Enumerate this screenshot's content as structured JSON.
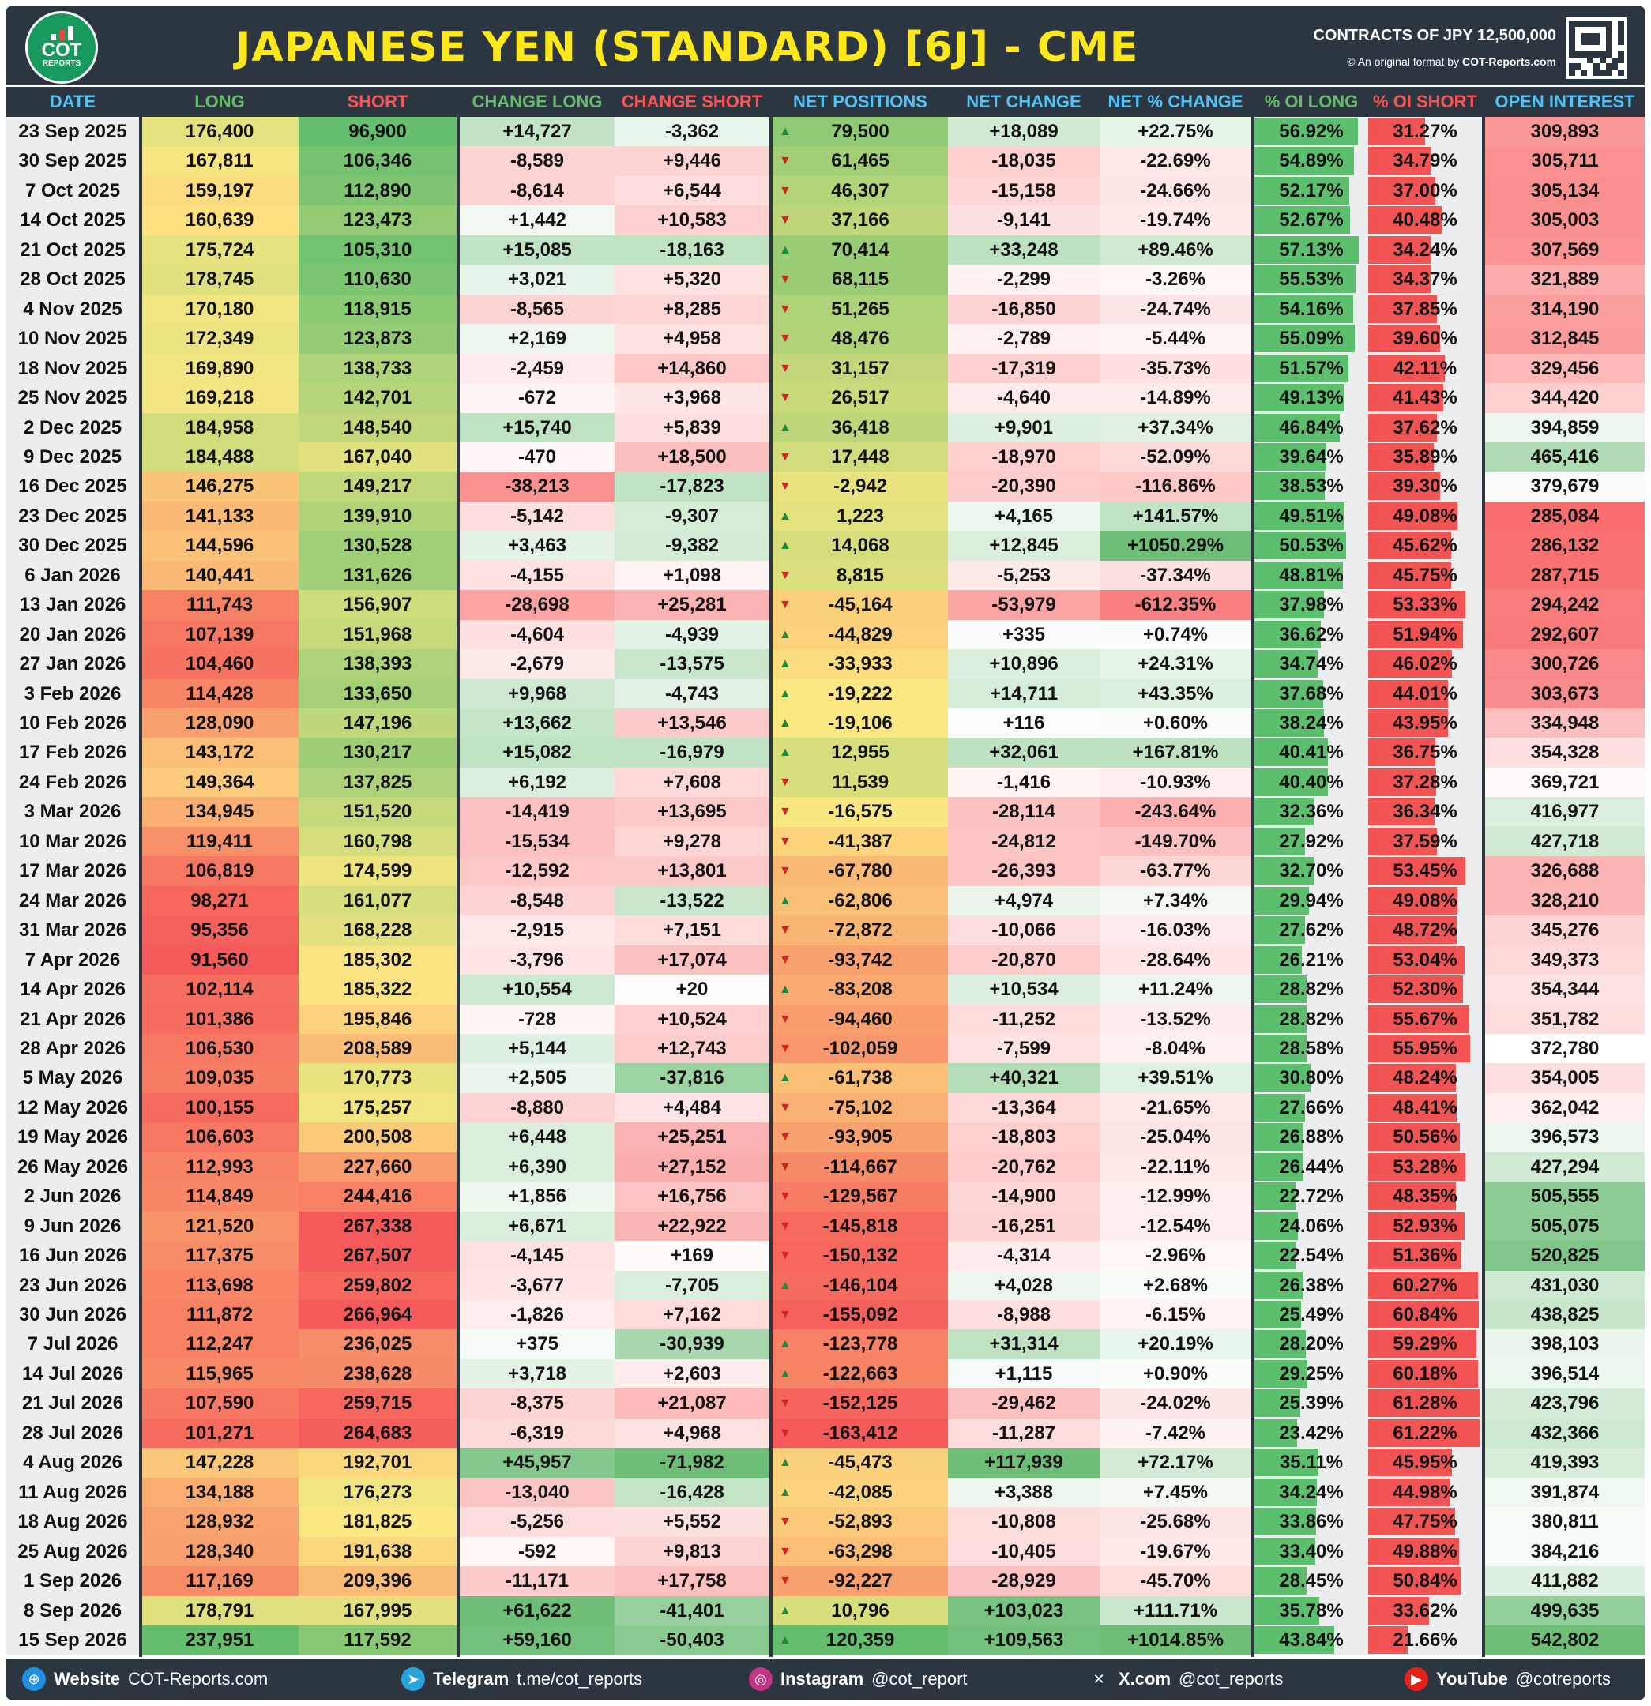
{
  "header": {
    "logo_main": "COT",
    "logo_sub": "REPORTS",
    "title": "JAPANESE YEN (STANDARD) [6J] - CME",
    "contracts": "CONTRACTS OF JPY 12,500,000",
    "credit_prefix": "© An original format by",
    "credit_site": "COT-Reports.com"
  },
  "columns": [
    {
      "label": "DATE",
      "color": "#4fc3f7"
    },
    {
      "label": "LONG",
      "color": "#66bb6a"
    },
    {
      "label": "SHORT",
      "color": "#ff5252"
    },
    {
      "label": "CHANGE LONG",
      "color": "#66bb6a"
    },
    {
      "label": "CHANGE SHORT",
      "color": "#ff5252"
    },
    {
      "label": "NET POSITIONS",
      "color": "#4fc3f7"
    },
    {
      "label": "NET CHANGE",
      "color": "#4fc3f7"
    },
    {
      "label": "NET % CHANGE",
      "color": "#4fc3f7"
    },
    {
      "label": "% OI LONG",
      "color": "#66bb6a"
    },
    {
      "label": "% OI SHORT",
      "color": "#ff5252"
    },
    {
      "label": "OPEN INTEREST",
      "color": "#4fc3f7"
    }
  ],
  "rows": [
    [
      "23 Sep 2025",
      "176,400",
      "96,900",
      "+14,727",
      "-3,362",
      "79,500",
      "+18,089",
      "+22.75%",
      "56.92%",
      "31.27%",
      "309,893"
    ],
    [
      "30 Sep 2025",
      "167,811",
      "106,346",
      "-8,589",
      "+9,446",
      "61,465",
      "-18,035",
      "-22.69%",
      "54.89%",
      "34.79%",
      "305,711"
    ],
    [
      "7 Oct 2025",
      "159,197",
      "112,890",
      "-8,614",
      "+6,544",
      "46,307",
      "-15,158",
      "-24.66%",
      "52.17%",
      "37.00%",
      "305,134"
    ],
    [
      "14 Oct 2025",
      "160,639",
      "123,473",
      "+1,442",
      "+10,583",
      "37,166",
      "-9,141",
      "-19.74%",
      "52.67%",
      "40.48%",
      "305,003"
    ],
    [
      "21 Oct 2025",
      "175,724",
      "105,310",
      "+15,085",
      "-18,163",
      "70,414",
      "+33,248",
      "+89.46%",
      "57.13%",
      "34.24%",
      "307,569"
    ],
    [
      "28 Oct 2025",
      "178,745",
      "110,630",
      "+3,021",
      "+5,320",
      "68,115",
      "-2,299",
      "-3.26%",
      "55.53%",
      "34.37%",
      "321,889"
    ],
    [
      "4 Nov 2025",
      "170,180",
      "118,915",
      "-8,565",
      "+8,285",
      "51,265",
      "-16,850",
      "-24.74%",
      "54.16%",
      "37.85%",
      "314,190"
    ],
    [
      "10 Nov 2025",
      "172,349",
      "123,873",
      "+2,169",
      "+4,958",
      "48,476",
      "-2,789",
      "-5.44%",
      "55.09%",
      "39.60%",
      "312,845"
    ],
    [
      "18 Nov 2025",
      "169,890",
      "138,733",
      "-2,459",
      "+14,860",
      "31,157",
      "-17,319",
      "-35.73%",
      "51.57%",
      "42.11%",
      "329,456"
    ],
    [
      "25 Nov 2025",
      "169,218",
      "142,701",
      "-672",
      "+3,968",
      "26,517",
      "-4,640",
      "-14.89%",
      "49.13%",
      "41.43%",
      "344,420"
    ],
    [
      "2 Dec 2025",
      "184,958",
      "148,540",
      "+15,740",
      "+5,839",
      "36,418",
      "+9,901",
      "+37.34%",
      "46.84%",
      "37.62%",
      "394,859"
    ],
    [
      "9 Dec 2025",
      "184,488",
      "167,040",
      "-470",
      "+18,500",
      "17,448",
      "-18,970",
      "-52.09%",
      "39.64%",
      "35.89%",
      "465,416"
    ],
    [
      "16 Dec 2025",
      "146,275",
      "149,217",
      "-38,213",
      "-17,823",
      "-2,942",
      "-20,390",
      "-116.86%",
      "38.53%",
      "39.30%",
      "379,679"
    ],
    [
      "23 Dec 2025",
      "141,133",
      "139,910",
      "-5,142",
      "-9,307",
      "1,223",
      "+4,165",
      "+141.57%",
      "49.51%",
      "49.08%",
      "285,084"
    ],
    [
      "30 Dec 2025",
      "144,596",
      "130,528",
      "+3,463",
      "-9,382",
      "14,068",
      "+12,845",
      "+1050.29%",
      "50.53%",
      "45.62%",
      "286,132"
    ],
    [
      "6 Jan 2026",
      "140,441",
      "131,626",
      "-4,155",
      "+1,098",
      "8,815",
      "-5,253",
      "-37.34%",
      "48.81%",
      "45.75%",
      "287,715"
    ],
    [
      "13 Jan 2026",
      "111,743",
      "156,907",
      "-28,698",
      "+25,281",
      "-45,164",
      "-53,979",
      "-612.35%",
      "37.98%",
      "53.33%",
      "294,242"
    ],
    [
      "20 Jan 2026",
      "107,139",
      "151,968",
      "-4,604",
      "-4,939",
      "-44,829",
      "+335",
      "+0.74%",
      "36.62%",
      "51.94%",
      "292,607"
    ],
    [
      "27 Jan 2026",
      "104,460",
      "138,393",
      "-2,679",
      "-13,575",
      "-33,933",
      "+10,896",
      "+24.31%",
      "34.74%",
      "46.02%",
      "300,726"
    ],
    [
      "3 Feb 2026",
      "114,428",
      "133,650",
      "+9,968",
      "-4,743",
      "-19,222",
      "+14,711",
      "+43.35%",
      "37.68%",
      "44.01%",
      "303,673"
    ],
    [
      "10 Feb 2026",
      "128,090",
      "147,196",
      "+13,662",
      "+13,546",
      "-19,106",
      "+116",
      "+0.60%",
      "38.24%",
      "43.95%",
      "334,948"
    ],
    [
      "17 Feb 2026",
      "143,172",
      "130,217",
      "+15,082",
      "-16,979",
      "12,955",
      "+32,061",
      "+167.81%",
      "40.41%",
      "36.75%",
      "354,328"
    ],
    [
      "24 Feb 2026",
      "149,364",
      "137,825",
      "+6,192",
      "+7,608",
      "11,539",
      "-1,416",
      "-10.93%",
      "40.40%",
      "37.28%",
      "369,721"
    ],
    [
      "3 Mar 2026",
      "134,945",
      "151,520",
      "-14,419",
      "+13,695",
      "-16,575",
      "-28,114",
      "-243.64%",
      "32.36%",
      "36.34%",
      "416,977"
    ],
    [
      "10 Mar 2026",
      "119,411",
      "160,798",
      "-15,534",
      "+9,278",
      "-41,387",
      "-24,812",
      "-149.70%",
      "27.92%",
      "37.59%",
      "427,718"
    ],
    [
      "17 Mar 2026",
      "106,819",
      "174,599",
      "-12,592",
      "+13,801",
      "-67,780",
      "-26,393",
      "-63.77%",
      "32.70%",
      "53.45%",
      "326,688"
    ],
    [
      "24 Mar 2026",
      "98,271",
      "161,077",
      "-8,548",
      "-13,522",
      "-62,806",
      "+4,974",
      "+7.34%",
      "29.94%",
      "49.08%",
      "328,210"
    ],
    [
      "31 Mar 2026",
      "95,356",
      "168,228",
      "-2,915",
      "+7,151",
      "-72,872",
      "-10,066",
      "-16.03%",
      "27.62%",
      "48.72%",
      "345,276"
    ],
    [
      "7 Apr 2026",
      "91,560",
      "185,302",
      "-3,796",
      "+17,074",
      "-93,742",
      "-20,870",
      "-28.64%",
      "26.21%",
      "53.04%",
      "349,373"
    ],
    [
      "14 Apr 2026",
      "102,114",
      "185,322",
      "+10,554",
      "+20",
      "-83,208",
      "+10,534",
      "+11.24%",
      "28.82%",
      "52.30%",
      "354,344"
    ],
    [
      "21 Apr 2026",
      "101,386",
      "195,846",
      "-728",
      "+10,524",
      "-94,460",
      "-11,252",
      "-13.52%",
      "28.82%",
      "55.67%",
      "351,782"
    ],
    [
      "28 Apr 2026",
      "106,530",
      "208,589",
      "+5,144",
      "+12,743",
      "-102,059",
      "-7,599",
      "-8.04%",
      "28.58%",
      "55.95%",
      "372,780"
    ],
    [
      "5 May 2026",
      "109,035",
      "170,773",
      "+2,505",
      "-37,816",
      "-61,738",
      "+40,321",
      "+39.51%",
      "30.80%",
      "48.24%",
      "354,005"
    ],
    [
      "12 May 2026",
      "100,155",
      "175,257",
      "-8,880",
      "+4,484",
      "-75,102",
      "-13,364",
      "-21.65%",
      "27.66%",
      "48.41%",
      "362,042"
    ],
    [
      "19 May 2026",
      "106,603",
      "200,508",
      "+6,448",
      "+25,251",
      "-93,905",
      "-18,803",
      "-25.04%",
      "26.88%",
      "50.56%",
      "396,573"
    ],
    [
      "26 May 2026",
      "112,993",
      "227,660",
      "+6,390",
      "+27,152",
      "-114,667",
      "-20,762",
      "-22.11%",
      "26.44%",
      "53.28%",
      "427,294"
    ],
    [
      "2 Jun 2026",
      "114,849",
      "244,416",
      "+1,856",
      "+16,756",
      "-129,567",
      "-14,900",
      "-12.99%",
      "22.72%",
      "48.35%",
      "505,555"
    ],
    [
      "9 Jun 2026",
      "121,520",
      "267,338",
      "+6,671",
      "+22,922",
      "-145,818",
      "-16,251",
      "-12.54%",
      "24.06%",
      "52.93%",
      "505,075"
    ],
    [
      "16 Jun 2026",
      "117,375",
      "267,507",
      "-4,145",
      "+169",
      "-150,132",
      "-4,314",
      "-2.96%",
      "22.54%",
      "51.36%",
      "520,825"
    ],
    [
      "23 Jun 2026",
      "113,698",
      "259,802",
      "-3,677",
      "-7,705",
      "-146,104",
      "+4,028",
      "+2.68%",
      "26.38%",
      "60.27%",
      "431,030"
    ],
    [
      "30 Jun 2026",
      "111,872",
      "266,964",
      "-1,826",
      "+7,162",
      "-155,092",
      "-8,988",
      "-6.15%",
      "25.49%",
      "60.84%",
      "438,825"
    ],
    [
      "7 Jul 2026",
      "112,247",
      "236,025",
      "+375",
      "-30,939",
      "-123,778",
      "+31,314",
      "+20.19%",
      "28.20%",
      "59.29%",
      "398,103"
    ],
    [
      "14 Jul 2026",
      "115,965",
      "238,628",
      "+3,718",
      "+2,603",
      "-122,663",
      "+1,115",
      "+0.90%",
      "29.25%",
      "60.18%",
      "396,514"
    ],
    [
      "21 Jul 2026",
      "107,590",
      "259,715",
      "-8,375",
      "+21,087",
      "-152,125",
      "-29,462",
      "-24.02%",
      "25.39%",
      "61.28%",
      "423,796"
    ],
    [
      "28 Jul 2026",
      "101,271",
      "264,683",
      "-6,319",
      "+4,968",
      "-163,412",
      "-11,287",
      "-7.42%",
      "23.42%",
      "61.22%",
      "432,366"
    ],
    [
      "4 Aug 2026",
      "147,228",
      "192,701",
      "+45,957",
      "-71,982",
      "-45,473",
      "+117,939",
      "+72.17%",
      "35.11%",
      "45.95%",
      "419,393"
    ],
    [
      "11 Aug 2026",
      "134,188",
      "176,273",
      "-13,040",
      "-16,428",
      "-42,085",
      "+3,388",
      "+7.45%",
      "34.24%",
      "44.98%",
      "391,874"
    ],
    [
      "18 Aug 2026",
      "128,932",
      "181,825",
      "-5,256",
      "+5,552",
      "-52,893",
      "-10,808",
      "-25.68%",
      "33.86%",
      "47.75%",
      "380,811"
    ],
    [
      "25 Aug 2026",
      "128,340",
      "191,638",
      "-592",
      "+9,813",
      "-63,298",
      "-10,405",
      "-19.67%",
      "33.40%",
      "49.88%",
      "384,216"
    ],
    [
      "1 Sep 2026",
      "117,169",
      "209,396",
      "-11,171",
      "+17,758",
      "-92,227",
      "-28,929",
      "-45.70%",
      "28.45%",
      "50.84%",
      "411,882"
    ],
    [
      "8 Sep 2026",
      "178,791",
      "167,995",
      "+61,622",
      "-41,401",
      "10,796",
      "+103,023",
      "+111.71%",
      "35.78%",
      "33.62%",
      "499,635"
    ],
    [
      "15 Sep 2026",
      "237,951",
      "117,592",
      "+59,160",
      "-50,403",
      "120,359",
      "+109,563",
      "+1014.85%",
      "43.84%",
      "21.66%",
      "542,802"
    ]
  ],
  "footer": [
    {
      "label": "Website",
      "value": "COT-Reports.com",
      "icon": "globe-icon"
    },
    {
      "label": "Telegram",
      "value": "t.me/cot_reports",
      "icon": "telegram-icon"
    },
    {
      "label": "Instagram",
      "value": "@cot_report",
      "icon": "instagram-icon"
    },
    {
      "label": "X.com",
      "value": "@cot_reports",
      "icon": "x-icon"
    },
    {
      "label": "YouTube",
      "value": "@cotreports",
      "icon": "youtube-icon"
    }
  ]
}
